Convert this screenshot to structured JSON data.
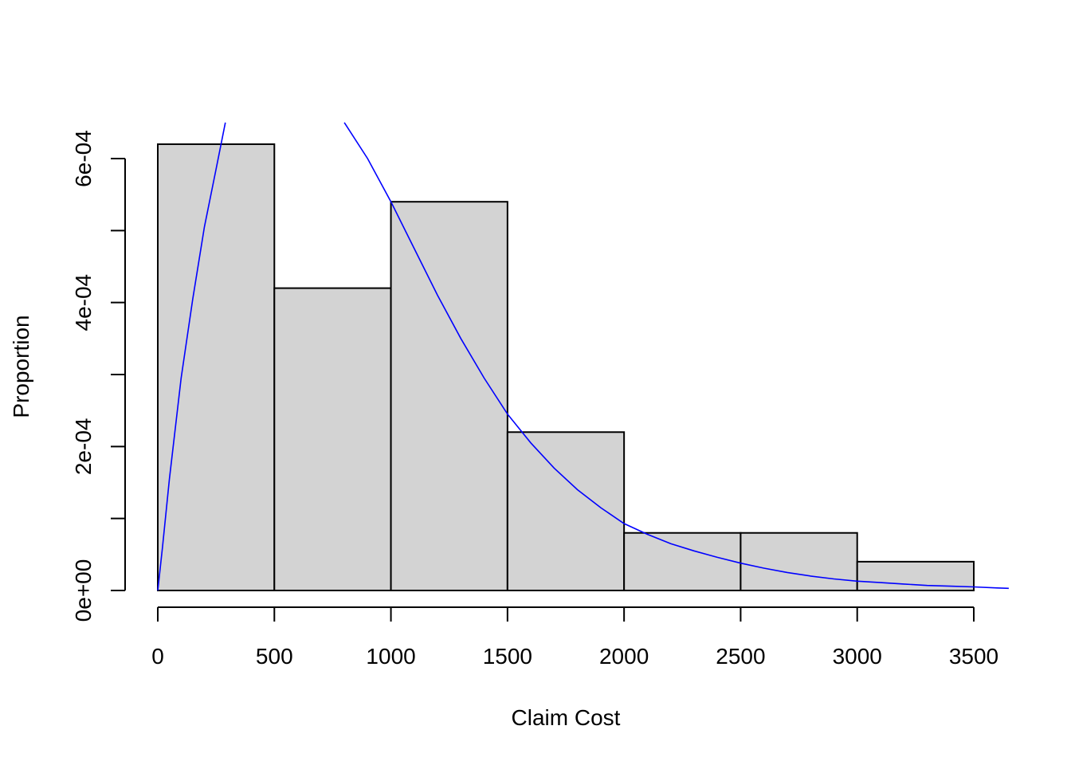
{
  "chart_data": {
    "type": "bar",
    "title": "",
    "xlabel": "Claim Cost",
    "ylabel": "Proportion",
    "bins": [
      {
        "x0": 0,
        "x1": 500,
        "value": 0.00062
      },
      {
        "x0": 500,
        "x1": 1000,
        "value": 0.00042
      },
      {
        "x0": 1000,
        "x1": 1500,
        "value": 0.00054
      },
      {
        "x0": 1500,
        "x1": 2000,
        "value": 0.00022
      },
      {
        "x0": 2000,
        "x1": 2500,
        "value": 8e-05
      },
      {
        "x0": 2500,
        "x1": 3000,
        "value": 8e-05
      },
      {
        "x0": 3000,
        "x1": 3500,
        "value": 4e-05
      }
    ],
    "xlim": [
      0,
      3650
    ],
    "ylim": [
      0,
      0.00065
    ],
    "x_ticks": [
      {
        "value": 0,
        "label": "0"
      },
      {
        "value": 500,
        "label": "500"
      },
      {
        "value": 1000,
        "label": "1000"
      },
      {
        "value": 1500,
        "label": "1500"
      },
      {
        "value": 2000,
        "label": "2000"
      },
      {
        "value": 2500,
        "label": "2500"
      },
      {
        "value": 3000,
        "label": "3000"
      },
      {
        "value": 3500,
        "label": "3500"
      }
    ],
    "y_ticks": [
      {
        "value": 0,
        "label": "0e+00"
      },
      {
        "value": 0.0001,
        "label": ""
      },
      {
        "value": 0.0002,
        "label": "2e-04"
      },
      {
        "value": 0.0003,
        "label": ""
      },
      {
        "value": 0.0004,
        "label": "4e-04"
      },
      {
        "value": 0.0005,
        "label": ""
      },
      {
        "value": 0.0006,
        "label": "6e-04"
      }
    ],
    "curve": {
      "x": [
        0,
        20,
        50,
        100,
        150,
        200,
        250,
        290,
        800,
        900,
        1000,
        1100,
        1200,
        1300,
        1400,
        1500,
        1600,
        1700,
        1800,
        1900,
        2000,
        2100,
        2200,
        2300,
        2400,
        2500,
        2600,
        2700,
        2800,
        2900,
        3000,
        3100,
        3200,
        3300,
        3400,
        3500,
        3600,
        3650
      ],
      "y": [
        0,
        6e-05,
        0.000155,
        0.000295,
        0.000405,
        0.000505,
        0.000585,
        0.00065,
        0.00065,
        0.0006,
        0.00054,
        0.000475,
        0.00041,
        0.00035,
        0.000295,
        0.000245,
        0.000205,
        0.00017,
        0.00014,
        0.000115,
        9.3e-05,
        7.8e-05,
        6.5e-05,
        5.5e-05,
        4.6e-05,
        3.8e-05,
        3.1e-05,
        2.5e-05,
        2e-05,
        1.6e-05,
        1.3e-05,
        1.1e-05,
        9e-06,
        7e-06,
        6e-06,
        5e-06,
        3.5e-06,
        3e-06
      ],
      "segments": [
        [
          0,
          7
        ],
        [
          8,
          37
        ]
      ]
    },
    "colors": {
      "bar_fill": "#d3d3d3",
      "bar_stroke": "#000000",
      "curve": "#0000ff",
      "axis": "#000000"
    },
    "grid": false,
    "legend": "none"
  }
}
